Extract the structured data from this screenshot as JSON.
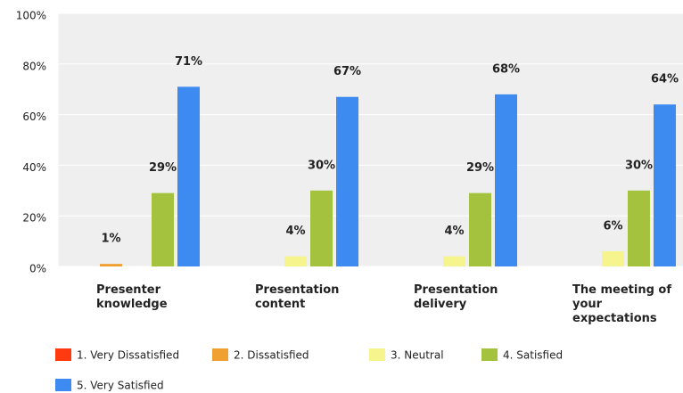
{
  "chart_data": {
    "type": "bar",
    "categories": [
      "Presenter knowledge",
      "Presentation content",
      "Presentation delivery",
      "The meeting of your expectations"
    ],
    "series": [
      {
        "name": "1. Very Dissatisfied",
        "color": "#ff3a10",
        "values": [
          0,
          0,
          0,
          0
        ],
        "value_labels": [
          null,
          null,
          null,
          null
        ]
      },
      {
        "name": "2. Dissatisfied",
        "color": "#f0a030",
        "values": [
          1,
          0,
          0,
          0
        ],
        "value_labels": [
          "1%",
          null,
          null,
          null
        ]
      },
      {
        "name": "3. Neutral",
        "color": "#f6f48c",
        "values": [
          0,
          4,
          4,
          6
        ],
        "value_labels": [
          null,
          "4%",
          "4%",
          "6%"
        ]
      },
      {
        "name": "4. Satisfied",
        "color": "#a4c23e",
        "values": [
          29,
          30,
          29,
          30
        ],
        "value_labels": [
          "29%",
          "30%",
          "29%",
          "30%"
        ]
      },
      {
        "name": "5. Very Satisfied",
        "color": "#3d8bf0",
        "values": [
          71,
          67,
          68,
          64
        ],
        "value_labels": [
          "71%",
          "67%",
          "68%",
          "64%"
        ]
      }
    ],
    "ylim": [
      0,
      100
    ],
    "yticks": [
      {
        "value": 0,
        "label": "0%"
      },
      {
        "value": 20,
        "label": "20%"
      },
      {
        "value": 40,
        "label": "40%"
      },
      {
        "value": 60,
        "label": "60%"
      },
      {
        "value": 80,
        "label": "80%"
      },
      {
        "value": 100,
        "label": "100%"
      }
    ],
    "grid": true
  }
}
